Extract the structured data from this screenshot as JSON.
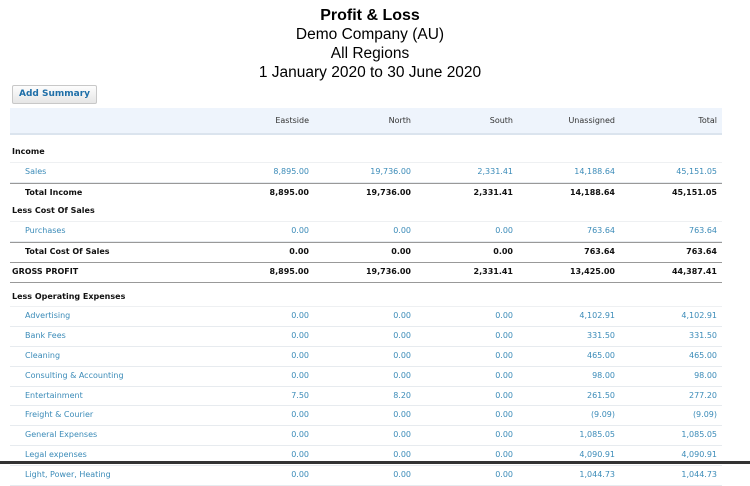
{
  "report": {
    "title": "Profit & Loss",
    "company": "Demo Company (AU)",
    "regions": "All Regions",
    "period": "1 January 2020 to 30 June 2020"
  },
  "toolbar": {
    "add_summary_label": "Add Summary"
  },
  "columns": [
    "",
    "Eastside",
    "North",
    "South",
    "Unassigned",
    "Total"
  ],
  "income": {
    "heading": "Income",
    "rows": [
      {
        "label": "Sales",
        "values": [
          "8,895.00",
          "19,736.00",
          "2,331.41",
          "14,188.64",
          "45,151.05"
        ]
      }
    ],
    "total": {
      "label": "Total Income",
      "values": [
        "8,895.00",
        "19,736.00",
        "2,331.41",
        "14,188.64",
        "45,151.05"
      ]
    }
  },
  "cost_of_sales": {
    "heading": "Less Cost Of Sales",
    "rows": [
      {
        "label": "Purchases",
        "values": [
          "0.00",
          "0.00",
          "0.00",
          "763.64",
          "763.64"
        ]
      }
    ],
    "total": {
      "label": "Total Cost Of Sales",
      "values": [
        "0.00",
        "0.00",
        "0.00",
        "763.64",
        "763.64"
      ]
    }
  },
  "gross_profit": {
    "label": "GROSS PROFIT",
    "values": [
      "8,895.00",
      "19,736.00",
      "2,331.41",
      "13,425.00",
      "44,387.41"
    ]
  },
  "operating_expenses": {
    "heading": "Less Operating Expenses",
    "rows": [
      {
        "label": "Advertising",
        "values": [
          "0.00",
          "0.00",
          "0.00",
          "4,102.91",
          "4,102.91"
        ]
      },
      {
        "label": "Bank Fees",
        "values": [
          "0.00",
          "0.00",
          "0.00",
          "331.50",
          "331.50"
        ]
      },
      {
        "label": "Cleaning",
        "values": [
          "0.00",
          "0.00",
          "0.00",
          "465.00",
          "465.00"
        ]
      },
      {
        "label": "Consulting & Accounting",
        "values": [
          "0.00",
          "0.00",
          "0.00",
          "98.00",
          "98.00"
        ]
      },
      {
        "label": "Entertainment",
        "values": [
          "7.50",
          "8.20",
          "0.00",
          "261.50",
          "277.20"
        ]
      },
      {
        "label": "Freight & Courier",
        "values": [
          "0.00",
          "0.00",
          "0.00",
          "(9.09)",
          "(9.09)"
        ]
      },
      {
        "label": "General Expenses",
        "values": [
          "0.00",
          "0.00",
          "0.00",
          "1,085.05",
          "1,085.05"
        ]
      },
      {
        "label": "Legal expenses",
        "values": [
          "0.00",
          "0.00",
          "0.00",
          "4,090.91",
          "4,090.91"
        ]
      },
      {
        "label": "Light, Power, Heating",
        "values": [
          "0.00",
          "0.00",
          "0.00",
          "1,044.73",
          "1,044.73"
        ]
      }
    ]
  }
}
